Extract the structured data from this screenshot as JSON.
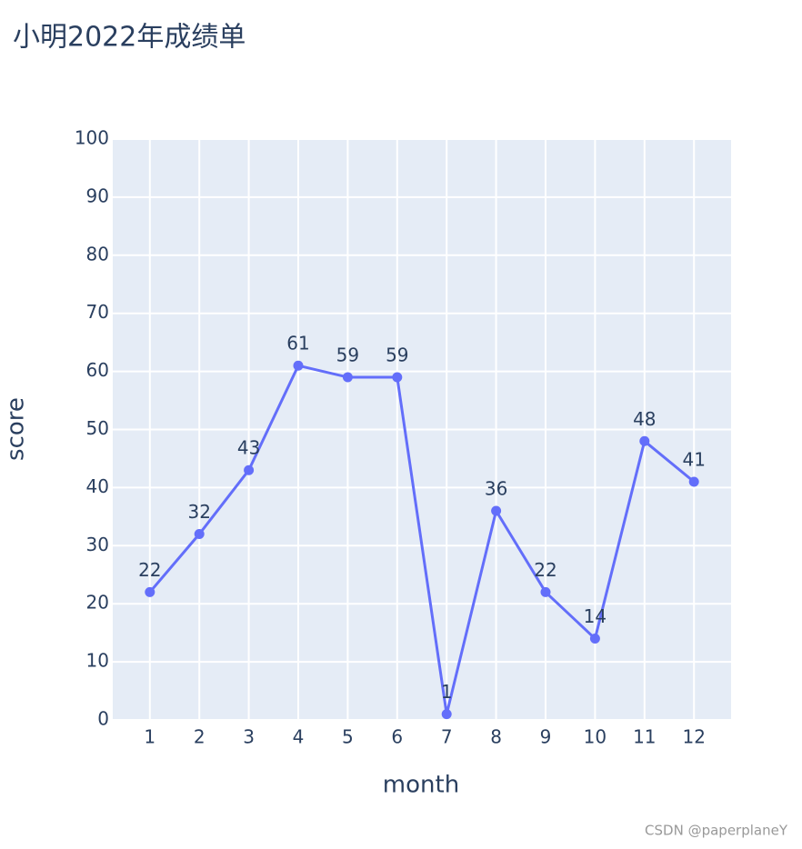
{
  "chart_data": {
    "type": "line",
    "title": "小明2022年成绩单",
    "x_label": "month",
    "y_label": "score",
    "x": [
      1,
      2,
      3,
      4,
      5,
      6,
      7,
      8,
      9,
      10,
      11,
      12
    ],
    "values": [
      22,
      32,
      43,
      61,
      59,
      59,
      1,
      36,
      22,
      14,
      48,
      41
    ],
    "color": "#636efa",
    "xlim": [
      0.25,
      12.75
    ],
    "xticks": [
      1,
      2,
      3,
      4,
      5,
      6,
      7,
      8,
      9,
      10,
      11,
      12
    ],
    "ylim": [
      0,
      100
    ],
    "yticks": [
      0,
      10,
      20,
      30,
      40,
      50,
      60,
      70,
      80,
      90,
      100
    ],
    "grid": true,
    "data_labels": true,
    "watermark": "CSDN @paperplaneY"
  }
}
